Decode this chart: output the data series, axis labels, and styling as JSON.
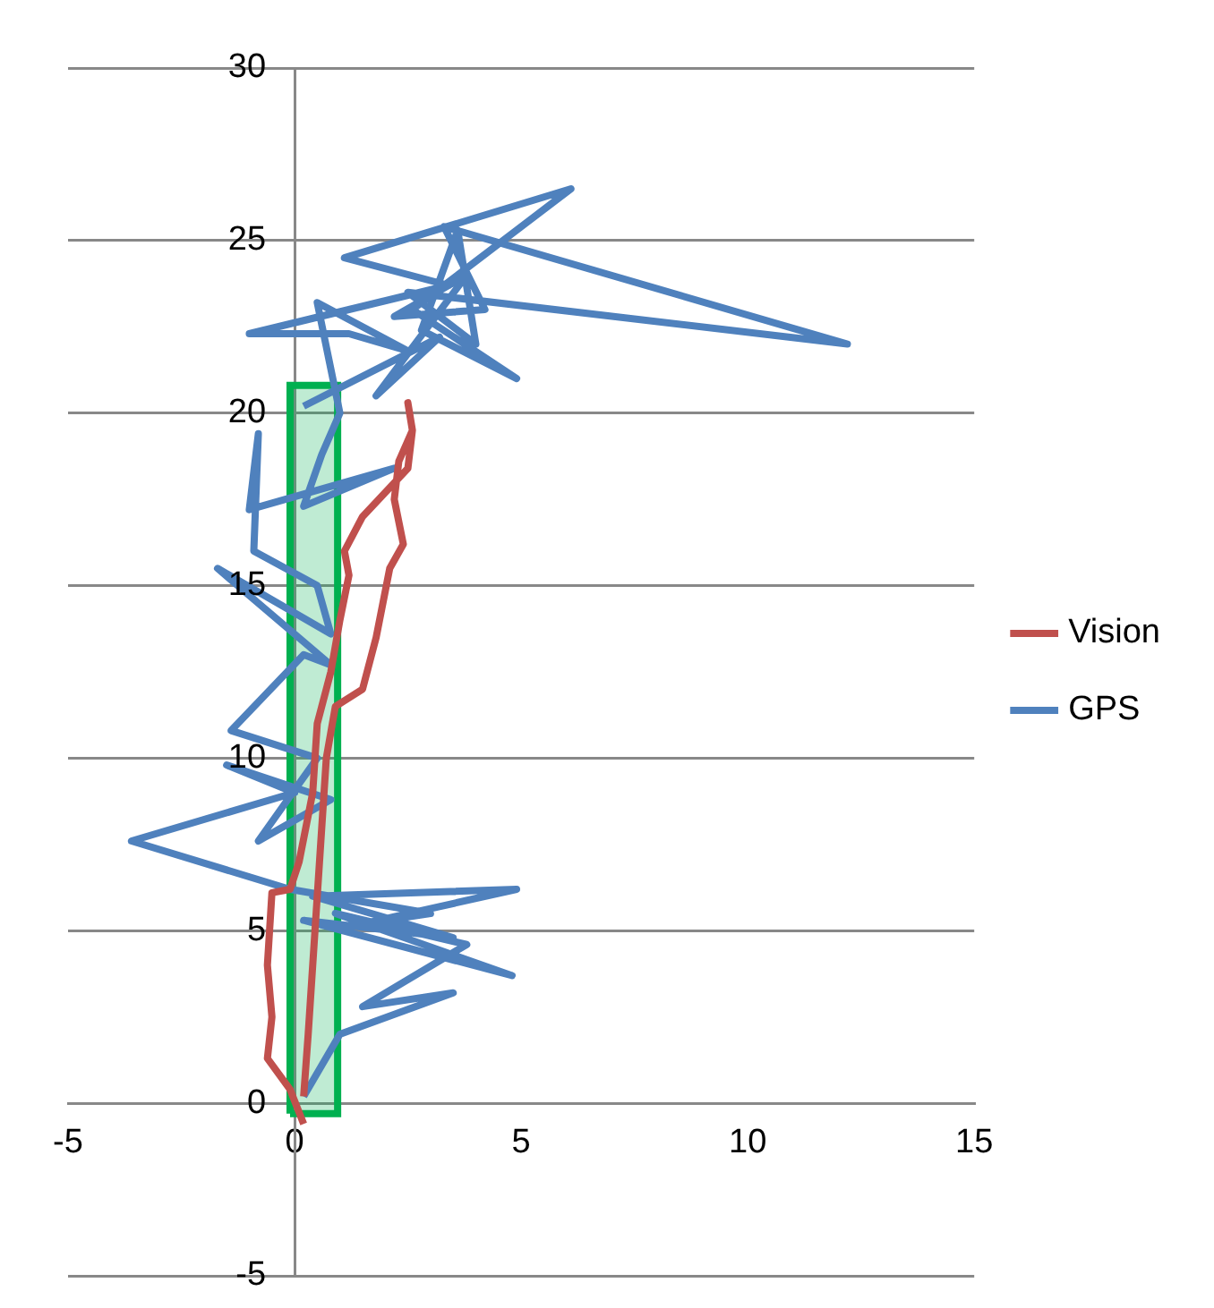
{
  "chart_data": {
    "type": "line",
    "xlim": [
      -5,
      15
    ],
    "ylim": [
      -5,
      30
    ],
    "xticks": [
      -5,
      0,
      5,
      10,
      15
    ],
    "yticks": [
      -5,
      0,
      5,
      10,
      15,
      20,
      25,
      30
    ],
    "grid": "y",
    "legend": "right",
    "marker": "none",
    "line_style": "solid",
    "series": [
      {
        "name": "Vision",
        "color": "#c0504d",
        "x": [
          0.2,
          -0.1,
          -0.6,
          -0.5,
          -0.6,
          -0.5,
          -0.1,
          0.1,
          0.4,
          0.5,
          0.8,
          1.0,
          1.2,
          1.1,
          1.5,
          2.0,
          2.5,
          2.6,
          2.5,
          2.6,
          2.3,
          2.2,
          2.4,
          2.1,
          1.8,
          1.5,
          0.9,
          0.7,
          0.6,
          0.5,
          0.4,
          0.3,
          0.2
        ],
        "values": [
          -0.6,
          0.4,
          1.3,
          2.5,
          4,
          6.1,
          6.2,
          7,
          9,
          11,
          12.5,
          14,
          15.3,
          16,
          17,
          17.7,
          18.4,
          19.5,
          20.3,
          19.5,
          18.6,
          17.5,
          16.2,
          15.5,
          13.5,
          12,
          11.5,
          10,
          8,
          6,
          4,
          2,
          0.2
        ]
      },
      {
        "name": "GPS",
        "color": "#4f81bd",
        "x": [
          0.2,
          1,
          3.5,
          1.5,
          3.8,
          0.9,
          4.8,
          0.2,
          3.5,
          0.4,
          4.9,
          1.5,
          3.0,
          -0.1,
          -3.6,
          0,
          -1.5,
          0.8,
          -0.8,
          0.5,
          -1.4,
          0.2,
          0.8,
          -1.7,
          0.8,
          0.5,
          -0.9,
          -0.8,
          -1,
          2.2,
          0.2,
          0.6,
          1,
          0.5,
          2.5,
          1.2,
          -1,
          3.4,
          1.1,
          6.1,
          2.6,
          4.9,
          2.8,
          3.6,
          4,
          2.5,
          12.2,
          3.3,
          4.2,
          2.2,
          3.8,
          1.8,
          3.2,
          0.2
        ],
        "values": [
          0.2,
          2,
          3.2,
          2.8,
          4.6,
          5.5,
          3.7,
          5.3,
          4.8,
          6,
          6.2,
          5.2,
          5.5,
          6.2,
          7.6,
          9,
          9.8,
          8.8,
          7.6,
          10,
          10.8,
          13,
          12.7,
          15.5,
          13.6,
          15,
          16,
          19.4,
          17.2,
          18.4,
          17.3,
          18.8,
          20,
          23.2,
          21.8,
          22.3,
          22.3,
          23.7,
          24.5,
          26.5,
          23,
          21,
          22.4,
          25.3,
          22,
          23.5,
          22,
          25.4,
          23,
          22.8,
          24,
          20.5,
          22.2,
          20.2
        ]
      },
      {
        "type": "area",
        "color": "#00b050",
        "x": [
          -0.1,
          0.95,
          0.95,
          -0.1,
          -0.1
        ],
        "values": [
          -0.3,
          -0.3,
          20.8,
          20.8,
          -0.3
        ]
      }
    ]
  }
}
